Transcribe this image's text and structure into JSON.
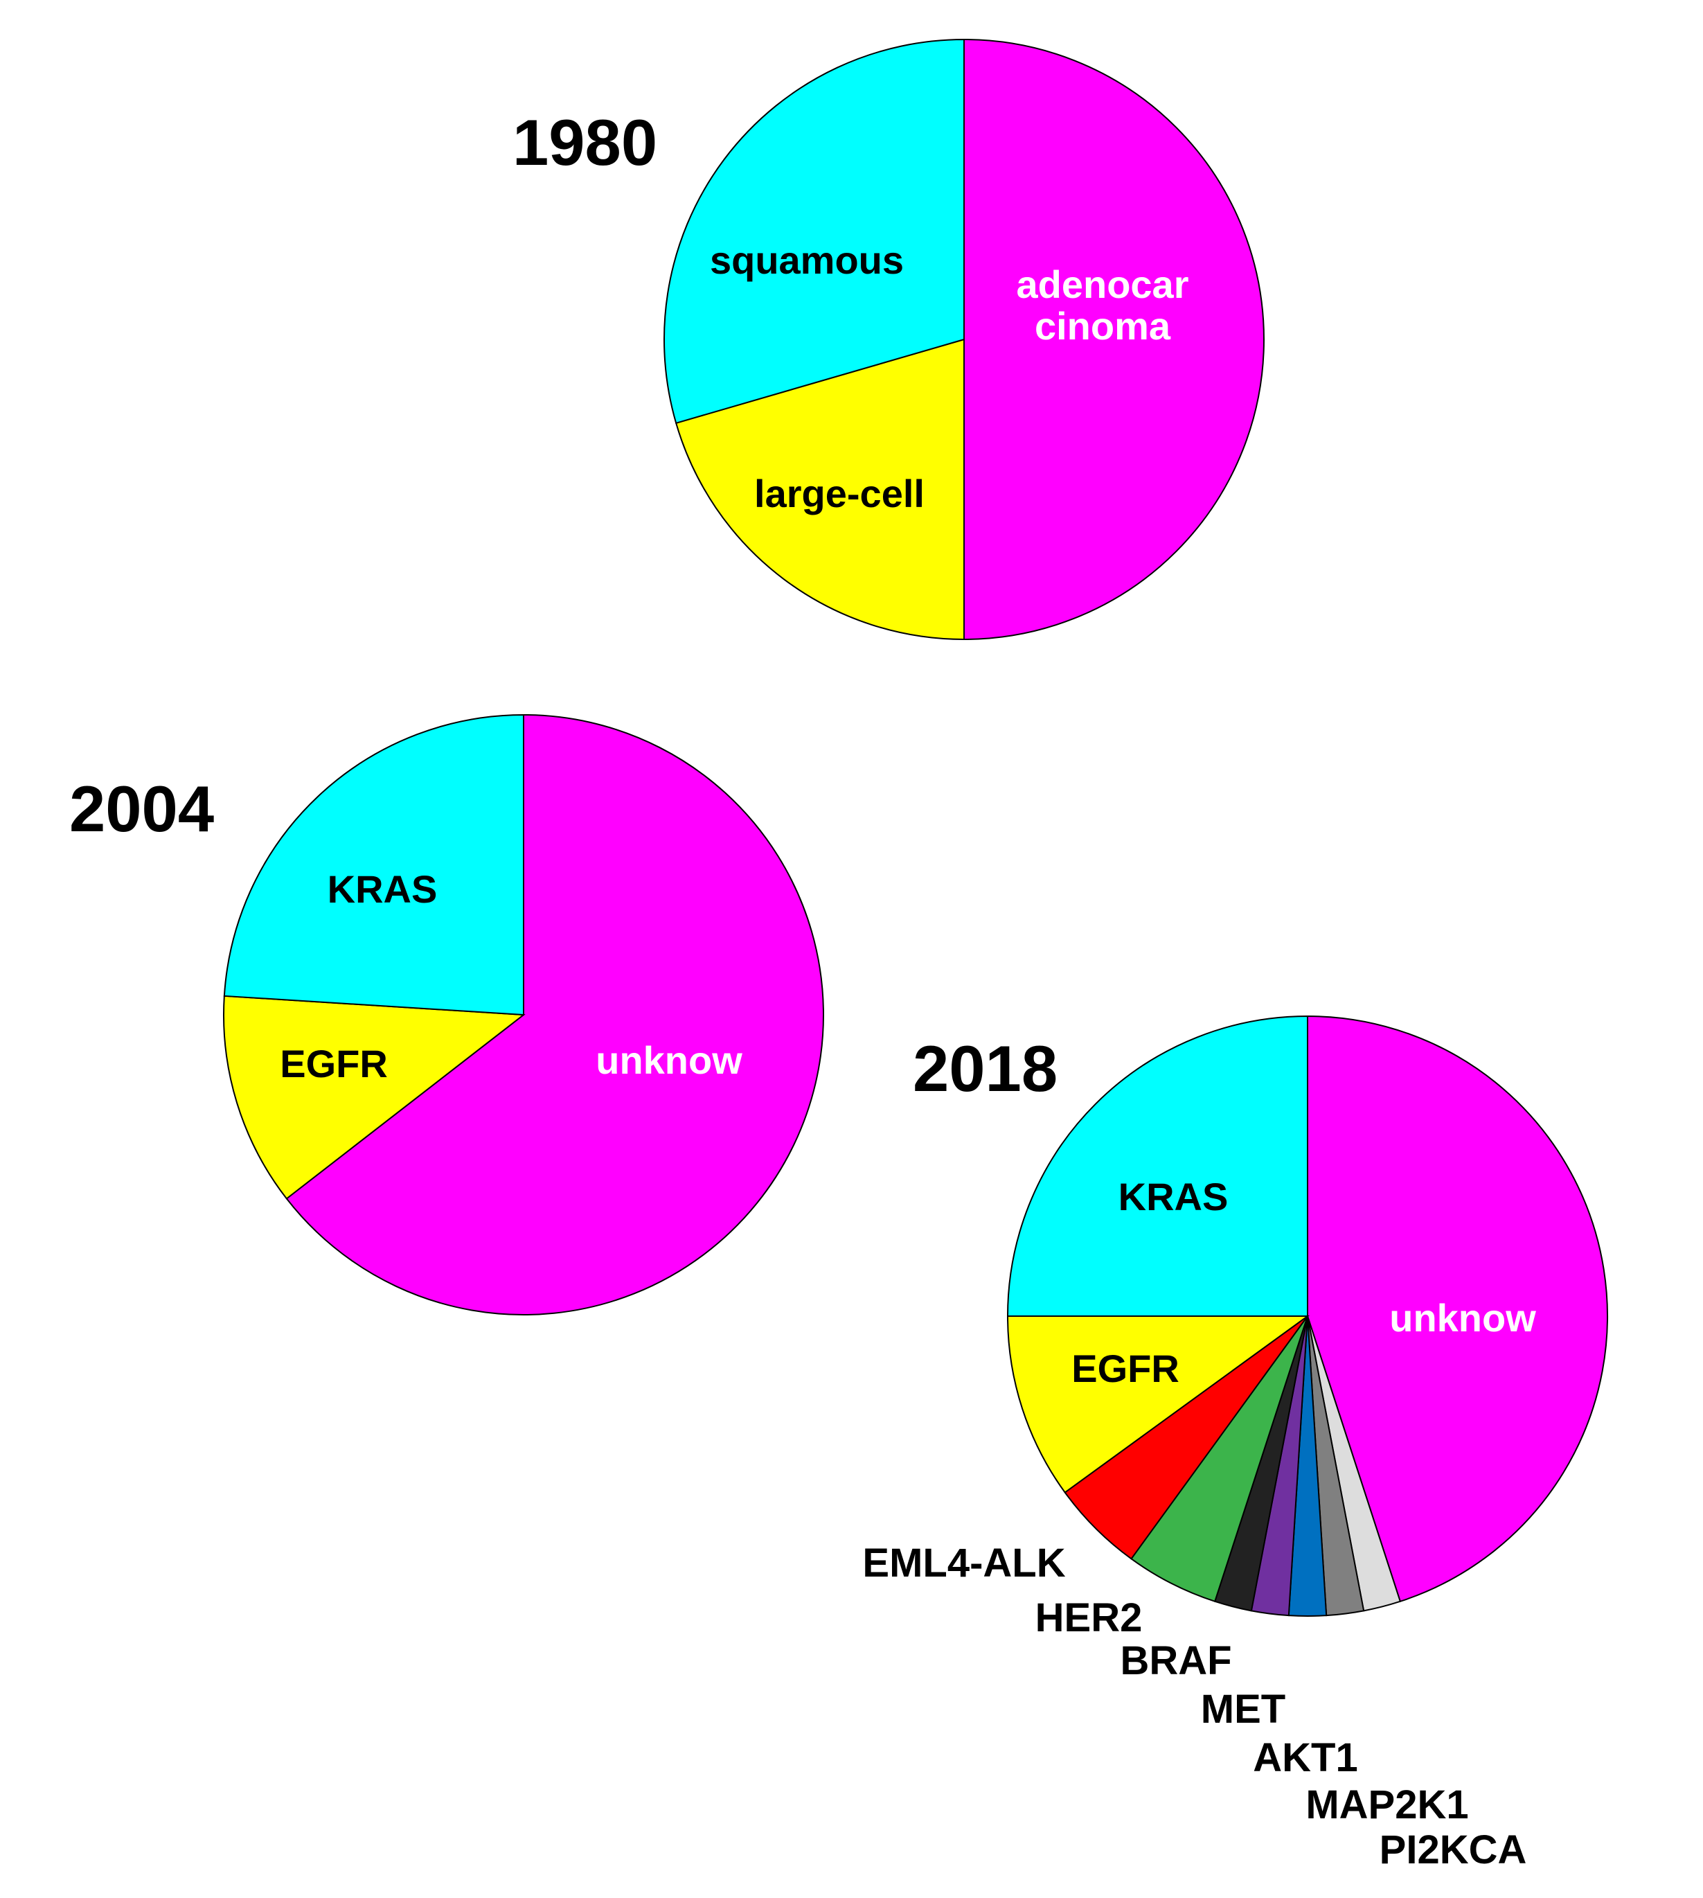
{
  "chart_data": [
    {
      "type": "pie",
      "title": "1980",
      "slices": [
        {
          "label": "adenocar\ncinoma",
          "value": 50,
          "color": "#ff00ff",
          "label_color": "#ffffff"
        },
        {
          "label": "large-cell",
          "value": 20.5,
          "color": "#ffff00",
          "label_color": "#000000"
        },
        {
          "label": "squamous",
          "value": 29.5,
          "color": "#00ffff",
          "label_color": "#000000"
        }
      ]
    },
    {
      "type": "pie",
      "title": "2004",
      "slices": [
        {
          "label": "unknow",
          "value": 64.5,
          "color": "#ff00ff",
          "label_color": "#ffffff"
        },
        {
          "label": "EGFR",
          "value": 11.5,
          "color": "#ffff00",
          "label_color": "#000000"
        },
        {
          "label": "KRAS",
          "value": 24,
          "color": "#00ffff",
          "label_color": "#000000"
        }
      ]
    },
    {
      "type": "pie",
      "title": "2018",
      "slices": [
        {
          "label": "unknow",
          "value": 45,
          "color": "#ff00ff",
          "label_color": "#ffffff"
        },
        {
          "label": "PI2KCA",
          "value": 2,
          "color": "#dddddd",
          "label_color": "#000000"
        },
        {
          "label": "MAP2K1",
          "value": 2,
          "color": "#808080",
          "label_color": "#000000"
        },
        {
          "label": "AKT1",
          "value": 2,
          "color": "#0070c0",
          "label_color": "#000000"
        },
        {
          "label": "MET",
          "value": 2,
          "color": "#7030a0",
          "label_color": "#000000"
        },
        {
          "label": "BRAF",
          "value": 2,
          "color": "#222222",
          "label_color": "#000000"
        },
        {
          "label": "HER2",
          "value": 5,
          "color": "#3cb44b",
          "label_color": "#000000"
        },
        {
          "label": "EML4-ALK",
          "value": 5,
          "color": "#ff0000",
          "label_color": "#000000"
        },
        {
          "label": "EGFR",
          "value": 10,
          "color": "#ffff00",
          "label_color": "#000000"
        },
        {
          "label": "KRAS",
          "value": 25,
          "color": "#00ffff",
          "label_color": "#000000"
        }
      ]
    }
  ]
}
